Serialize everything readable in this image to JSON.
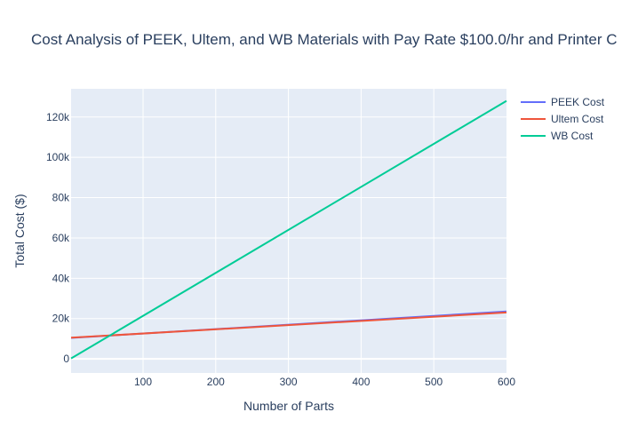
{
  "chart_data": {
    "type": "line",
    "title": "Cost Analysis of PEEK, Ultem, and WB Materials with Pay Rate $100.0/hr and Printer C",
    "xlabel": "Number of Parts",
    "ylabel": "Total Cost ($)",
    "xlim": [
      1,
      600
    ],
    "ylim": [
      -7000,
      134000
    ],
    "x_ticks": [
      100,
      200,
      300,
      400,
      500,
      600
    ],
    "y_ticks": [
      0,
      20000,
      40000,
      60000,
      80000,
      100000,
      120000
    ],
    "y_tick_labels": [
      "0",
      "20k",
      "40k",
      "60k",
      "80k",
      "100k",
      "120k"
    ],
    "grid": true,
    "legend_position": "top-right outside",
    "plot_bgcolor": "#e5ecf6",
    "series": [
      {
        "name": "PEEK Cost",
        "color": "#636efa",
        "x": [
          1,
          600
        ],
        "y": [
          10400,
          23500
        ]
      },
      {
        "name": "Ultem Cost",
        "color": "#ef553b",
        "x": [
          1,
          600
        ],
        "y": [
          10500,
          23000
        ]
      },
      {
        "name": "WB Cost",
        "color": "#00cc96",
        "x": [
          1,
          600
        ],
        "y": [
          200,
          128000
        ]
      }
    ]
  }
}
